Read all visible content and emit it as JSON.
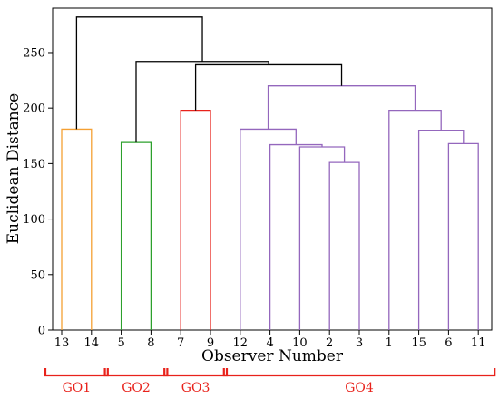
{
  "chart_data": {
    "type": "dendrogram",
    "xlabel": "Observer Number",
    "ylabel": "Euclidean Distance",
    "ylim": [
      0,
      290
    ],
    "yticks": [
      0,
      50,
      100,
      150,
      200,
      250
    ],
    "leaves": [
      "13",
      "14",
      "5",
      "8",
      "7",
      "9",
      "12",
      "4",
      "10",
      "2",
      "3",
      "1",
      "15",
      "6",
      "11"
    ],
    "links": [
      {
        "left": "13",
        "right": "14",
        "height": 181,
        "color": "#f5a033"
      },
      {
        "left": "5",
        "right": "8",
        "height": 169,
        "color": "#2ca02c"
      },
      {
        "left": "7",
        "right": "9",
        "height": 198,
        "color": "#e8221b"
      },
      {
        "left": "2",
        "right": "3",
        "height": 151,
        "color": "#9467bd"
      },
      {
        "left": "10",
        "right": "[2,3]",
        "height": 165,
        "color": "#9467bd"
      },
      {
        "left": "4",
        "right": "[10,2,3]",
        "height": 167,
        "color": "#9467bd"
      },
      {
        "left": "12",
        "right": "[4,10,2,3]",
        "height": 181,
        "color": "#9467bd"
      },
      {
        "left": "6",
        "right": "11",
        "height": 168,
        "color": "#9467bd"
      },
      {
        "left": "15",
        "right": "[6,11]",
        "height": 180,
        "color": "#9467bd"
      },
      {
        "left": "1",
        "right": "[15,6,11]",
        "height": 198,
        "color": "#9467bd"
      },
      {
        "left": "[12..3]",
        "right": "[1..11]",
        "height": 220,
        "color": "#9467bd"
      },
      {
        "left": "[7,9]",
        "right": "[12..11]",
        "height": 239,
        "color": "#000000"
      },
      {
        "left": "[5,8]",
        "right": "[7..11]",
        "height": 242,
        "color": "#000000"
      },
      {
        "left": "[13,14]",
        "right": "[5..11]",
        "height": 282,
        "color": "#000000"
      }
    ],
    "groups": [
      {
        "label": "GO1",
        "members": [
          "13",
          "14"
        ]
      },
      {
        "label": "GO2",
        "members": [
          "5",
          "8"
        ]
      },
      {
        "label": "GO3",
        "members": [
          "7",
          "9"
        ]
      },
      {
        "label": "GO4",
        "members": [
          "12",
          "4",
          "10",
          "2",
          "3",
          "1",
          "15",
          "6",
          "11"
        ]
      }
    ],
    "group_color": "#e8221b",
    "grid": false
  }
}
